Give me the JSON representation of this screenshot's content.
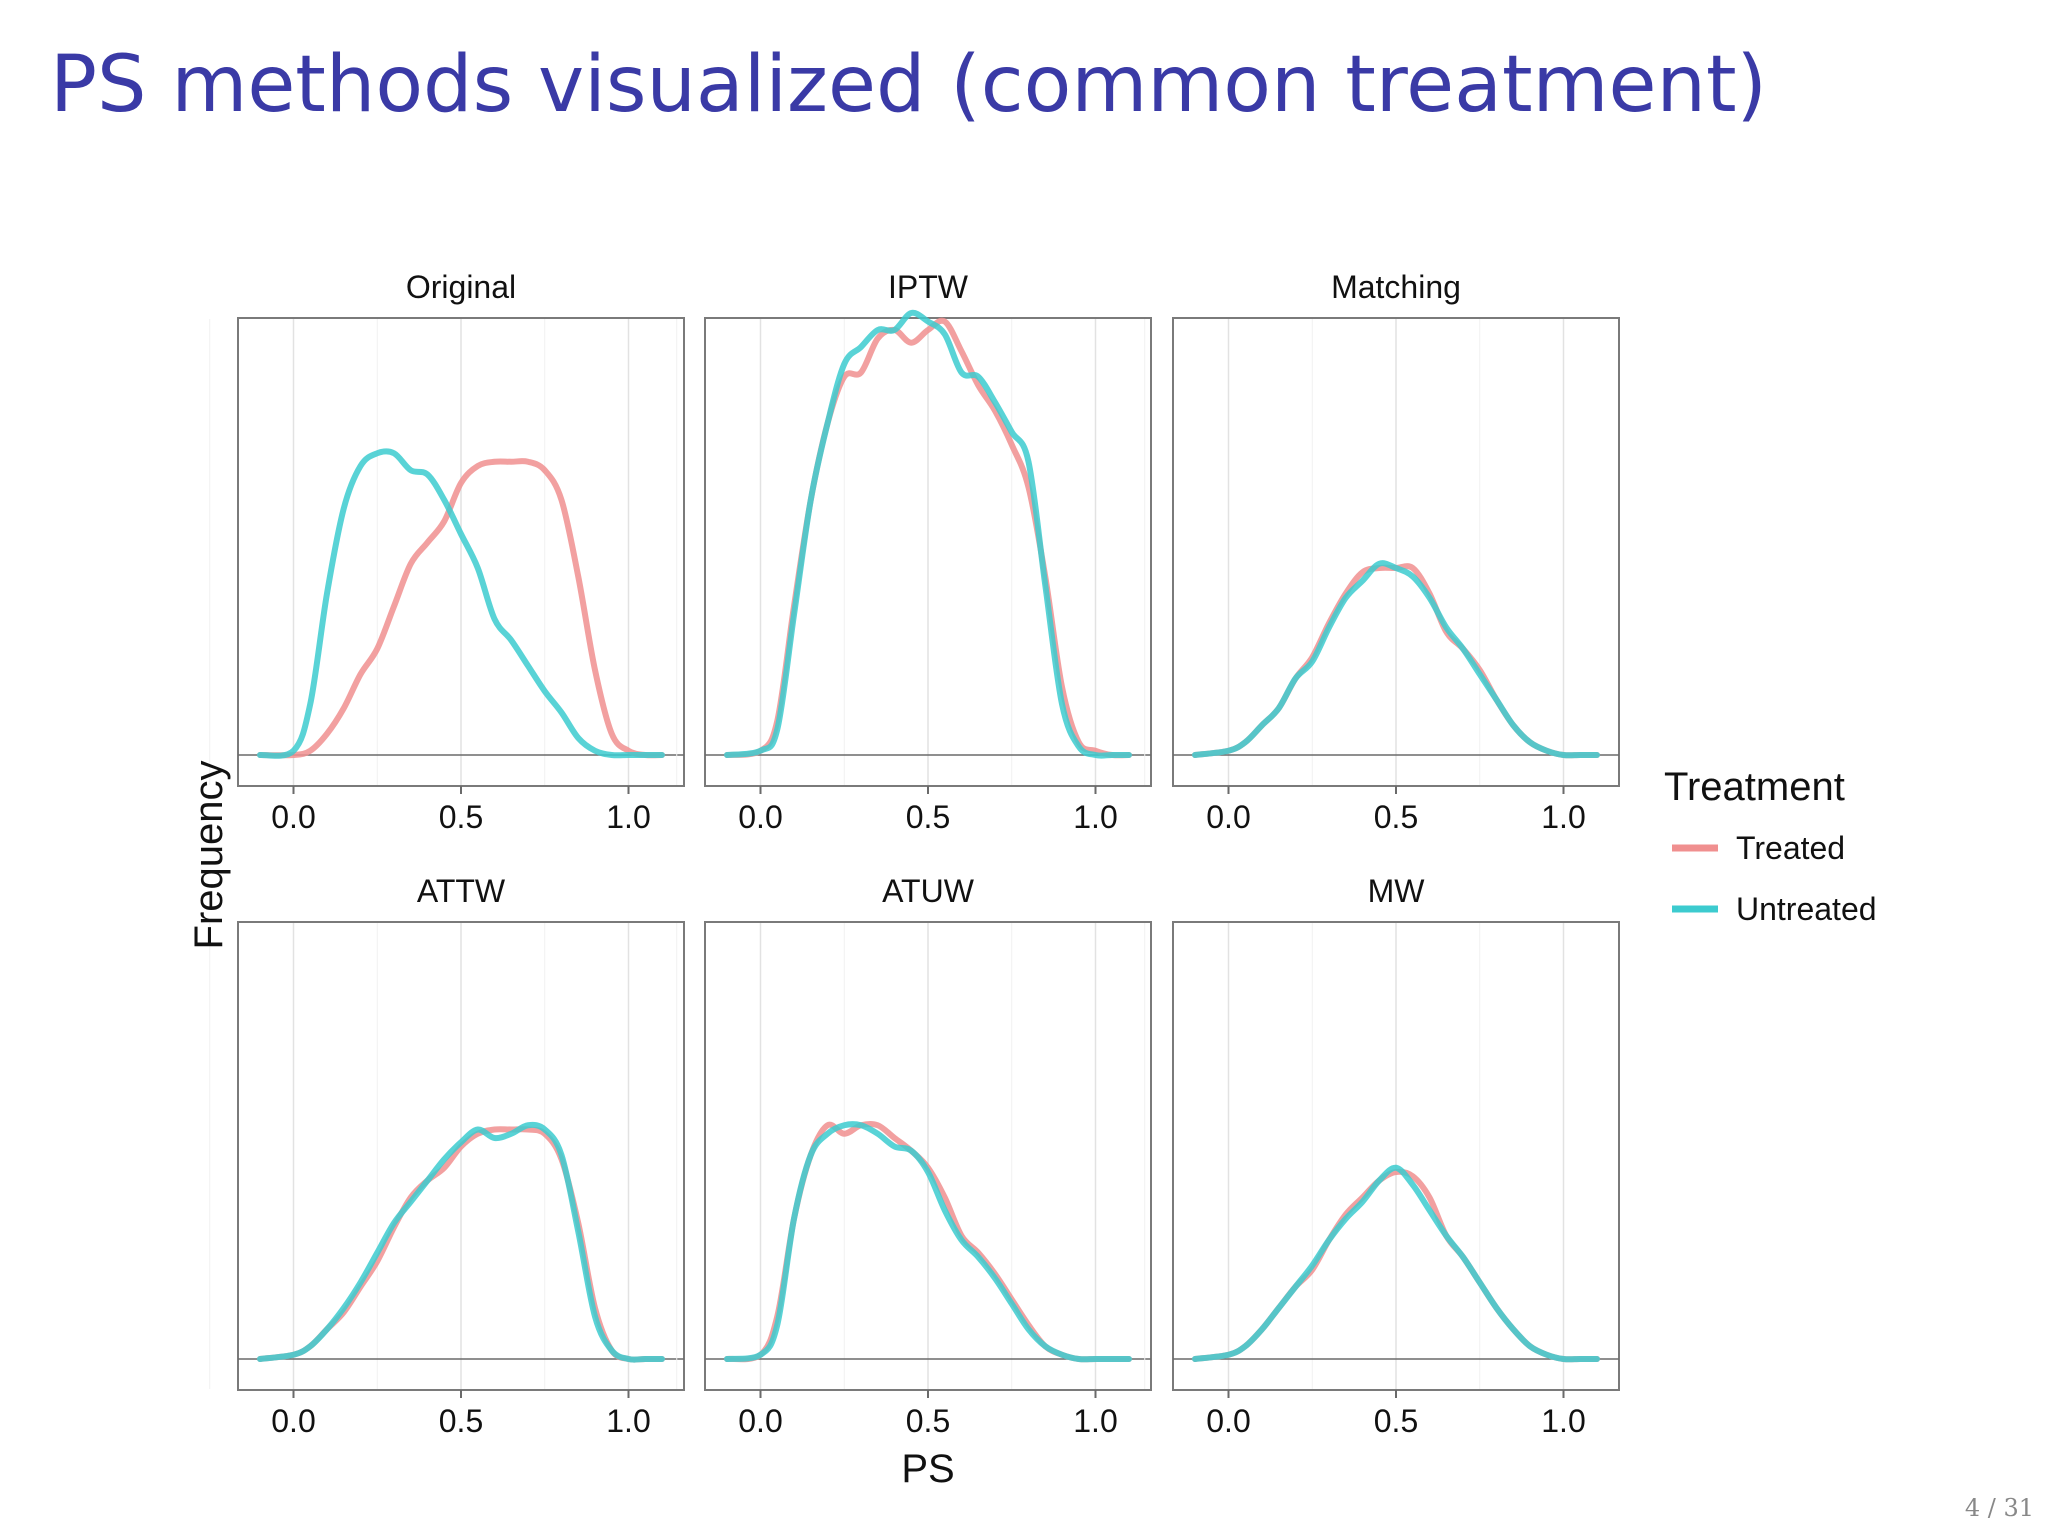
{
  "slide": {
    "title": "PS methods visualized (common treatment)",
    "page": "4 / 31"
  },
  "colors": {
    "treated": "#f08f8f",
    "untreated": "#3ccbcf"
  },
  "chart_data": {
    "type": "line",
    "xlabel": "PS",
    "ylabel": "Frequency",
    "xlim": [
      -0.1,
      1.1
    ],
    "ylim": [
      0,
      1
    ],
    "xticks": [
      {
        "value": 0.0,
        "label": "0.0"
      },
      {
        "value": 0.5,
        "label": "0.5"
      },
      {
        "value": 1.0,
        "label": "1.0"
      }
    ],
    "legend": {
      "title": "Treatment",
      "position": "right",
      "entries": [
        "Treated",
        "Untreated"
      ]
    },
    "grid": true,
    "panels": [
      {
        "title": "Original",
        "series": [
          {
            "name": "Treated",
            "x": [
              -0.1,
              0,
              0.05,
              0.1,
              0.15,
              0.2,
              0.25,
              0.3,
              0.35,
              0.4,
              0.45,
              0.5,
              0.55,
              0.6,
              0.65,
              0.7,
              0.75,
              0.8,
              0.85,
              0.9,
              0.95,
              1.0,
              1.05,
              1.1
            ],
            "y": [
              0,
              0,
              0.01,
              0.05,
              0.11,
              0.19,
              0.25,
              0.35,
              0.45,
              0.5,
              0.55,
              0.64,
              0.68,
              0.69,
              0.69,
              0.69,
              0.67,
              0.6,
              0.42,
              0.2,
              0.05,
              0.01,
              0,
              0
            ]
          },
          {
            "name": "Untreated",
            "x": [
              -0.1,
              0,
              0.05,
              0.1,
              0.15,
              0.2,
              0.25,
              0.3,
              0.35,
              0.4,
              0.45,
              0.5,
              0.55,
              0.6,
              0.65,
              0.7,
              0.75,
              0.8,
              0.85,
              0.9,
              0.95,
              1.0,
              1.05,
              1.1
            ],
            "y": [
              0,
              0.01,
              0.12,
              0.38,
              0.58,
              0.68,
              0.71,
              0.71,
              0.67,
              0.66,
              0.6,
              0.52,
              0.44,
              0.32,
              0.27,
              0.21,
              0.15,
              0.1,
              0.04,
              0.01,
              0,
              0,
              0,
              0
            ]
          }
        ]
      },
      {
        "title": "IPTW",
        "series": [
          {
            "name": "Treated",
            "x": [
              -0.1,
              0,
              0.05,
              0.1,
              0.15,
              0.2,
              0.25,
              0.3,
              0.35,
              0.4,
              0.45,
              0.5,
              0.55,
              0.6,
              0.65,
              0.7,
              0.75,
              0.8,
              0.85,
              0.9,
              0.95,
              1.0,
              1.05,
              1.1
            ],
            "y": [
              0,
              0.01,
              0.08,
              0.35,
              0.6,
              0.78,
              0.89,
              0.9,
              0.98,
              1.0,
              0.97,
              1.0,
              1.02,
              0.95,
              0.87,
              0.81,
              0.73,
              0.63,
              0.42,
              0.16,
              0.03,
              0.01,
              0,
              0
            ]
          },
          {
            "name": "Untreated",
            "x": [
              -0.1,
              0,
              0.05,
              0.1,
              0.15,
              0.2,
              0.25,
              0.3,
              0.35,
              0.4,
              0.45,
              0.5,
              0.55,
              0.6,
              0.65,
              0.7,
              0.75,
              0.8,
              0.85,
              0.9,
              0.95,
              1.0,
              1.05,
              1.1
            ],
            "y": [
              0,
              0.01,
              0.06,
              0.33,
              0.6,
              0.78,
              0.92,
              0.96,
              1.0,
              1.0,
              1.04,
              1.02,
              0.99,
              0.9,
              0.89,
              0.83,
              0.76,
              0.69,
              0.4,
              0.12,
              0.02,
              0,
              0,
              0
            ]
          }
        ]
      },
      {
        "title": "Matching",
        "series": [
          {
            "name": "Treated",
            "x": [
              -0.1,
              0,
              0.05,
              0.1,
              0.15,
              0.2,
              0.25,
              0.3,
              0.35,
              0.4,
              0.45,
              0.5,
              0.55,
              0.6,
              0.65,
              0.7,
              0.75,
              0.8,
              0.85,
              0.9,
              0.95,
              1.0,
              1.05,
              1.1
            ],
            "y": [
              0,
              0.01,
              0.03,
              0.07,
              0.11,
              0.18,
              0.23,
              0.31,
              0.38,
              0.43,
              0.44,
              0.44,
              0.44,
              0.38,
              0.29,
              0.25,
              0.2,
              0.13,
              0.07,
              0.03,
              0.01,
              0,
              0,
              0
            ]
          },
          {
            "name": "Untreated",
            "x": [
              -0.1,
              0,
              0.05,
              0.1,
              0.15,
              0.2,
              0.25,
              0.3,
              0.35,
              0.4,
              0.45,
              0.5,
              0.55,
              0.6,
              0.65,
              0.7,
              0.75,
              0.8,
              0.85,
              0.9,
              0.95,
              1.0,
              1.05,
              1.1
            ],
            "y": [
              0,
              0.01,
              0.03,
              0.07,
              0.11,
              0.18,
              0.22,
              0.3,
              0.37,
              0.41,
              0.45,
              0.44,
              0.42,
              0.37,
              0.3,
              0.25,
              0.19,
              0.13,
              0.07,
              0.03,
              0.01,
              0,
              0,
              0
            ]
          }
        ]
      },
      {
        "title": "ATTW",
        "series": [
          {
            "name": "Treated",
            "x": [
              -0.1,
              0,
              0.05,
              0.1,
              0.15,
              0.2,
              0.25,
              0.3,
              0.35,
              0.4,
              0.45,
              0.5,
              0.55,
              0.6,
              0.65,
              0.7,
              0.75,
              0.8,
              0.85,
              0.9,
              0.95,
              1.0,
              1.05,
              1.1
            ],
            "y": [
              0,
              0.01,
              0.03,
              0.07,
              0.11,
              0.17,
              0.23,
              0.31,
              0.38,
              0.42,
              0.45,
              0.5,
              0.53,
              0.54,
              0.54,
              0.54,
              0.53,
              0.47,
              0.32,
              0.12,
              0.02,
              0,
              0,
              0
            ]
          },
          {
            "name": "Untreated",
            "x": [
              -0.1,
              0,
              0.05,
              0.1,
              0.15,
              0.2,
              0.25,
              0.3,
              0.35,
              0.4,
              0.45,
              0.5,
              0.55,
              0.6,
              0.65,
              0.7,
              0.75,
              0.8,
              0.85,
              0.9,
              0.95,
              1.0,
              1.05,
              1.1
            ],
            "y": [
              0,
              0.01,
              0.03,
              0.07,
              0.12,
              0.18,
              0.25,
              0.32,
              0.37,
              0.42,
              0.47,
              0.51,
              0.54,
              0.52,
              0.53,
              0.55,
              0.54,
              0.48,
              0.3,
              0.1,
              0.02,
              0,
              0,
              0
            ]
          }
        ]
      },
      {
        "title": "ATUW",
        "series": [
          {
            "name": "Treated",
            "x": [
              -0.1,
              0,
              0.05,
              0.1,
              0.15,
              0.2,
              0.25,
              0.3,
              0.35,
              0.4,
              0.45,
              0.5,
              0.55,
              0.6,
              0.65,
              0.7,
              0.75,
              0.8,
              0.85,
              0.9,
              0.95,
              1.0,
              1.05,
              1.1
            ],
            "y": [
              0,
              0.01,
              0.1,
              0.33,
              0.48,
              0.55,
              0.53,
              0.55,
              0.55,
              0.52,
              0.49,
              0.45,
              0.38,
              0.29,
              0.25,
              0.2,
              0.14,
              0.08,
              0.03,
              0.01,
              0,
              0,
              0,
              0
            ]
          },
          {
            "name": "Untreated",
            "x": [
              -0.1,
              0,
              0.05,
              0.1,
              0.15,
              0.2,
              0.25,
              0.3,
              0.35,
              0.4,
              0.45,
              0.5,
              0.55,
              0.6,
              0.65,
              0.7,
              0.75,
              0.8,
              0.85,
              0.9,
              0.95,
              1.0,
              1.05,
              1.1
            ],
            "y": [
              0,
              0.01,
              0.08,
              0.33,
              0.48,
              0.53,
              0.55,
              0.55,
              0.53,
              0.5,
              0.49,
              0.44,
              0.35,
              0.28,
              0.24,
              0.19,
              0.13,
              0.07,
              0.03,
              0.01,
              0,
              0,
              0,
              0
            ]
          }
        ]
      },
      {
        "title": "MW",
        "series": [
          {
            "name": "Treated",
            "x": [
              -0.1,
              0,
              0.05,
              0.1,
              0.15,
              0.2,
              0.25,
              0.3,
              0.35,
              0.4,
              0.45,
              0.5,
              0.55,
              0.6,
              0.65,
              0.7,
              0.75,
              0.8,
              0.85,
              0.9,
              0.95,
              1.0,
              1.05,
              1.1
            ],
            "y": [
              0,
              0.01,
              0.03,
              0.07,
              0.12,
              0.17,
              0.21,
              0.28,
              0.34,
              0.38,
              0.42,
              0.44,
              0.43,
              0.38,
              0.29,
              0.24,
              0.18,
              0.12,
              0.07,
              0.03,
              0.01,
              0,
              0,
              0
            ]
          },
          {
            "name": "Untreated",
            "x": [
              -0.1,
              0,
              0.05,
              0.1,
              0.15,
              0.2,
              0.25,
              0.3,
              0.35,
              0.4,
              0.45,
              0.5,
              0.55,
              0.6,
              0.65,
              0.7,
              0.75,
              0.8,
              0.85,
              0.9,
              0.95,
              1.0,
              1.05,
              1.1
            ],
            "y": [
              0,
              0.01,
              0.03,
              0.07,
              0.12,
              0.17,
              0.22,
              0.28,
              0.33,
              0.37,
              0.42,
              0.45,
              0.41,
              0.35,
              0.29,
              0.24,
              0.18,
              0.12,
              0.07,
              0.03,
              0.01,
              0,
              0,
              0
            ]
          }
        ]
      }
    ]
  }
}
